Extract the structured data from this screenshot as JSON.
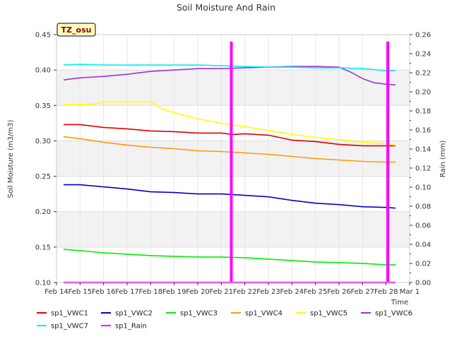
{
  "chart_data": {
    "type": "line",
    "title": "Soil Moisture And Rain",
    "site_label": "TZ_osu",
    "xlabel": "Time",
    "ylabel": "Soil Moisture (m3/m3)",
    "y2label": "Rain (mm)",
    "x_ticks": [
      "Feb 14",
      "Feb 15",
      "Feb 16",
      "Feb 17",
      "Feb 18",
      "Feb 19",
      "Feb 20",
      "Feb 21",
      "Feb 22",
      "Feb 23",
      "Feb 24",
      "Feb 25",
      "Feb 26",
      "Feb 27",
      "Feb 28",
      "Mar 1"
    ],
    "xlim": [
      0,
      15
    ],
    "ylim": [
      0.1,
      0.45
    ],
    "y_ticks": [
      0.1,
      0.15,
      0.2,
      0.25,
      0.3,
      0.35,
      0.4,
      0.45
    ],
    "y2lim": [
      0.0,
      0.26
    ],
    "y2_ticks": [
      0.0,
      0.02,
      0.04,
      0.06,
      0.08,
      0.1,
      0.12,
      0.14,
      0.16,
      0.18,
      0.2,
      0.22,
      0.24,
      0.26
    ],
    "series": [
      {
        "name": "sp1_VWC1",
        "color": "#dd0000",
        "axis": "left",
        "x": [
          0.3,
          1.0,
          2.0,
          3.0,
          4.0,
          5.0,
          6.0,
          7.0,
          7.5,
          8.0,
          9.0,
          10.0,
          11.0,
          12.0,
          13.0,
          14.0,
          14.4
        ],
        "y": [
          0.323,
          0.323,
          0.319,
          0.317,
          0.314,
          0.313,
          0.311,
          0.311,
          0.309,
          0.31,
          0.308,
          0.301,
          0.299,
          0.295,
          0.293,
          0.293,
          0.293
        ]
      },
      {
        "name": "sp1_VWC2",
        "color": "#0000cc",
        "axis": "left",
        "x": [
          0.3,
          1.0,
          2.0,
          3.0,
          4.0,
          5.0,
          6.0,
          7.0,
          8.0,
          9.0,
          10.0,
          11.0,
          12.0,
          13.0,
          14.0,
          14.4
        ],
        "y": [
          0.238,
          0.238,
          0.235,
          0.232,
          0.228,
          0.227,
          0.225,
          0.225,
          0.223,
          0.221,
          0.216,
          0.212,
          0.21,
          0.207,
          0.206,
          0.205
        ]
      },
      {
        "name": "sp1_VWC3",
        "color": "#00ee00",
        "axis": "left",
        "x": [
          0.3,
          1.0,
          2.0,
          3.0,
          4.0,
          5.0,
          6.0,
          7.0,
          8.0,
          9.0,
          10.0,
          11.0,
          12.0,
          13.0,
          14.0,
          14.4
        ],
        "y": [
          0.147,
          0.145,
          0.142,
          0.14,
          0.138,
          0.137,
          0.136,
          0.136,
          0.135,
          0.133,
          0.131,
          0.129,
          0.128,
          0.127,
          0.125,
          0.125
        ]
      },
      {
        "name": "sp1_VWC4",
        "color": "#ff9900",
        "axis": "left",
        "x": [
          0.3,
          1.0,
          2.0,
          3.0,
          4.0,
          5.0,
          6.0,
          7.0,
          8.0,
          9.0,
          10.0,
          11.0,
          12.0,
          13.0,
          14.0,
          14.4
        ],
        "y": [
          0.306,
          0.303,
          0.298,
          0.294,
          0.291,
          0.289,
          0.286,
          0.285,
          0.283,
          0.281,
          0.278,
          0.275,
          0.273,
          0.271,
          0.27,
          0.27
        ]
      },
      {
        "name": "sp1_VWC5",
        "color": "#ffff00",
        "axis": "left",
        "x": [
          0.3,
          1.0,
          1.6,
          2.0,
          3.0,
          4.0,
          4.5,
          5.0,
          6.0,
          7.0,
          8.0,
          9.0,
          10.0,
          11.0,
          12.0,
          13.0,
          14.0,
          14.4
        ],
        "y": [
          0.351,
          0.351,
          0.352,
          0.355,
          0.355,
          0.355,
          0.345,
          0.34,
          0.331,
          0.325,
          0.32,
          0.315,
          0.309,
          0.305,
          0.302,
          0.298,
          0.296,
          0.294
        ]
      },
      {
        "name": "sp1_VWC6",
        "color": "#9933dd",
        "axis": "left",
        "x": [
          0.3,
          1.0,
          2.0,
          3.0,
          4.0,
          5.0,
          6.0,
          7.0,
          8.0,
          9.0,
          10.0,
          11.0,
          12.0,
          12.5,
          13.0,
          13.5,
          14.0,
          14.4
        ],
        "y": [
          0.386,
          0.389,
          0.391,
          0.394,
          0.398,
          0.4,
          0.402,
          0.402,
          0.403,
          0.404,
          0.405,
          0.405,
          0.404,
          0.397,
          0.388,
          0.382,
          0.38,
          0.379
        ]
      },
      {
        "name": "sp1_VWC7",
        "color": "#00eeee",
        "axis": "left",
        "x": [
          0.3,
          1.0,
          2.0,
          3.0,
          4.0,
          5.0,
          6.0,
          7.0,
          8.0,
          9.0,
          10.0,
          11.0,
          12.0,
          13.0,
          14.0,
          14.4
        ],
        "y": [
          0.407,
          0.408,
          0.407,
          0.407,
          0.407,
          0.407,
          0.407,
          0.406,
          0.405,
          0.404,
          0.404,
          0.403,
          0.403,
          0.402,
          0.399,
          0.399
        ]
      },
      {
        "name": "sp1_Rain",
        "color": "#ff00ff",
        "axis": "right",
        "x": [
          0.3,
          7.4,
          7.4,
          7.45,
          7.45,
          14.05,
          14.05,
          14.1,
          14.1,
          14.4
        ],
        "y": [
          0.0,
          0.0,
          0.252,
          0.252,
          0.0,
          0.0,
          0.252,
          0.252,
          0.0,
          0.0
        ]
      }
    ]
  }
}
